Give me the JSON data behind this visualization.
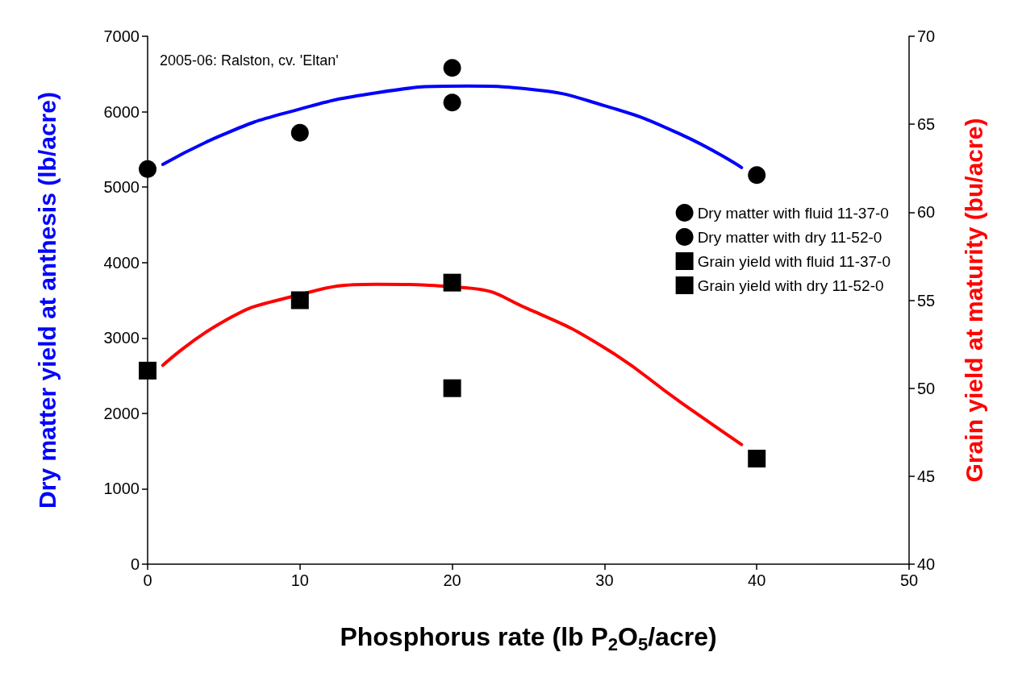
{
  "chart_data": {
    "type": "scatter",
    "xlabel": "Phosphorus rate (lb P$_{2}$O$_{5}$/acre)",
    "ylabel": "Dry matter yield at anthesis (lb/acre)",
    "y2label": "Grain yield at maturity (bu/acre)",
    "annotations": [
      "2005-06: Ralston, cv. 'Eltan'"
    ],
    "xlim": [
      0,
      50
    ],
    "xticks": [
      0,
      10,
      20,
      30,
      40,
      50
    ],
    "ylim": [
      0,
      7000
    ],
    "yticks": [
      0,
      1000,
      2000,
      3000,
      4000,
      5000,
      6000,
      7000
    ],
    "y2lim": [
      40,
      70
    ],
    "y2ticks": [
      40,
      45,
      50,
      55,
      60,
      65,
      70
    ],
    "grid": false,
    "legend": "right",
    "series": [
      {
        "type": "line",
        "color": "#0000ff",
        "marker": "none",
        "x": [
          1,
          5,
          9,
          15,
          21,
          25,
          30,
          35,
          39
        ],
        "values": [
          5300,
          5700,
          5980,
          6250,
          6340,
          6300,
          6080,
          5700,
          5260
        ]
      },
      {
        "type": "line",
        "axis": "y2",
        "color": "#ff0000",
        "marker": "none",
        "x": [
          1,
          5,
          9,
          15,
          21,
          25,
          30,
          35,
          39
        ],
        "values": [
          51.3,
          53.8,
          55.1,
          55.9,
          55.7,
          54.5,
          52.3,
          49.2,
          46.8
        ]
      },
      {
        "name": "Dry matter with fluid 11-37-0",
        "color": "#000000",
        "marker": "circle",
        "x": [
          0,
          10,
          20,
          40
        ],
        "values": [
          5240,
          5720,
          6580,
          5160
        ]
      },
      {
        "name": "Dry matter with dry 11-52-0",
        "color": "#000000",
        "marker": "circle",
        "x": [
          20
        ],
        "values": [
          6120
        ]
      },
      {
        "name": "Grain yield with fluid 11-37-0",
        "color": "#000000",
        "marker": "square",
        "axis": "y2",
        "x": [
          0,
          10,
          20,
          40
        ],
        "values": [
          51,
          55,
          56,
          46
        ]
      },
      {
        "name": "Grain yield with dry 11-52-0",
        "color": "#000000",
        "marker": "square",
        "axis": "y2",
        "x": [
          20
        ],
        "values": [
          50
        ]
      }
    ]
  }
}
